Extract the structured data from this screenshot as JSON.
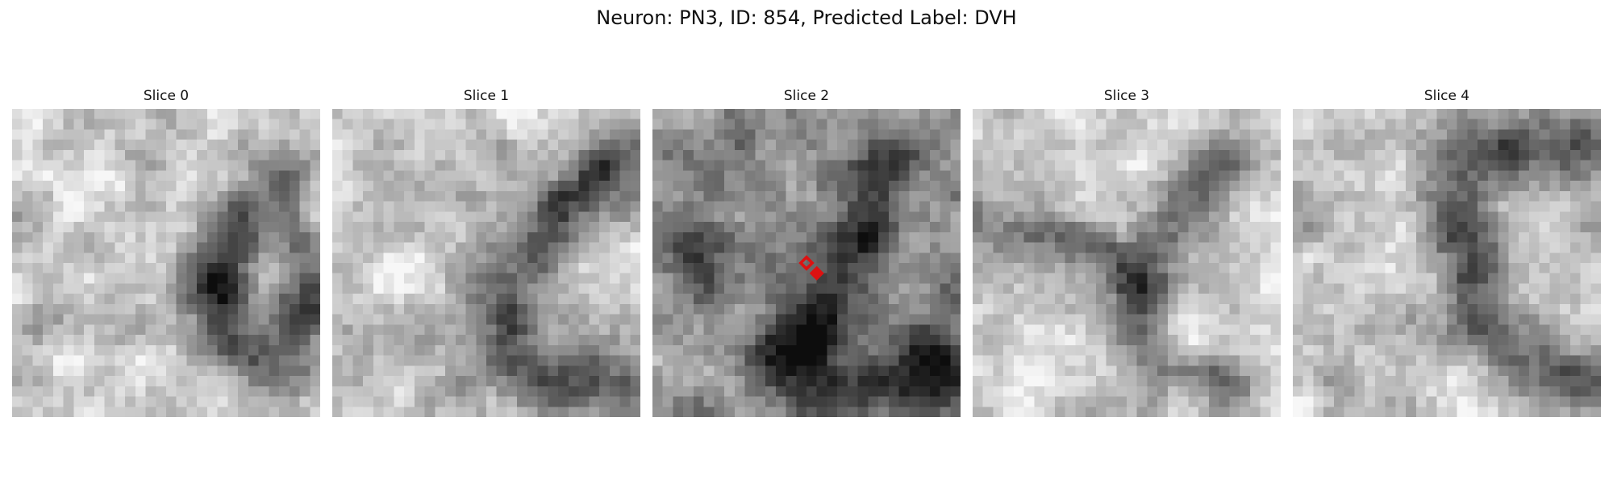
{
  "figure": {
    "title": "Neuron: PN3, ID: 854, Predicted Label: DVH"
  },
  "slices": [
    {
      "label": "Slice 0",
      "marker": false
    },
    {
      "label": "Slice 1",
      "marker": false
    },
    {
      "label": "Slice 2",
      "marker": true
    },
    {
      "label": "Slice 3",
      "marker": false
    },
    {
      "label": "Slice 4",
      "marker": false
    }
  ],
  "colors": {
    "marker": "#dd1111",
    "background": "#ffffff"
  }
}
